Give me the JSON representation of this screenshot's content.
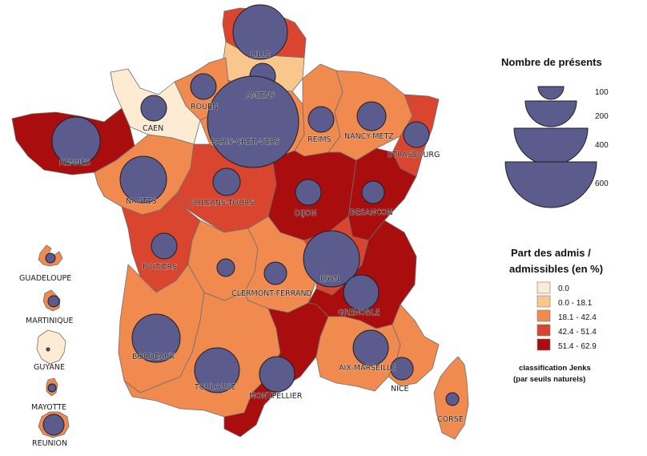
{
  "colors": {
    "c0": "#fdebd3",
    "c1": "#f9c78c",
    "c2": "#f08a4e",
    "c3": "#d9452f",
    "c4": "#aa0d0d",
    "circle": "#5b5b8e"
  },
  "legend": {
    "size_title": "Nombre de présents",
    "size_values": [
      "100",
      "200",
      "400",
      "600"
    ],
    "color_title_1": "Part des admis /",
    "color_title_2": "admissibles (en %)",
    "classes": [
      "0.0",
      "0.0 - 18.1",
      "18.1 - 42.4",
      "42.4 - 51.4",
      "51.4 - 62.9"
    ],
    "note_1": "classification Jenks",
    "note_2": "(par seuils naturels)"
  },
  "regions": [
    {
      "name": "LILLE",
      "class": 3
    },
    {
      "name": "AMIENS",
      "class": 1
    },
    {
      "name": "ROUEN",
      "class": 2
    },
    {
      "name": "CAEN",
      "class": 0
    },
    {
      "name": "PARIS-CRET.-VERS",
      "class": 2
    },
    {
      "name": "REIMS",
      "class": 2
    },
    {
      "name": "NANCY-METZ",
      "class": 2
    },
    {
      "name": "STRASBOURG",
      "class": 3
    },
    {
      "name": "RENNES",
      "class": 4
    },
    {
      "name": "NANTES",
      "class": 2
    },
    {
      "name": "ORLEANS-TOURS",
      "class": 3
    },
    {
      "name": "DIJON",
      "class": 4
    },
    {
      "name": "BESANCON",
      "class": 4
    },
    {
      "name": "POITIERS",
      "class": 3
    },
    {
      "name": "LIMOGES",
      "class": 2
    },
    {
      "name": "CLERMONT-FERRAND",
      "class": 2
    },
    {
      "name": "LYON",
      "class": 3
    },
    {
      "name": "GRENOBLE",
      "class": 4
    },
    {
      "name": "BORDEAUX",
      "class": 2
    },
    {
      "name": "TOULOUSE",
      "class": 2
    },
    {
      "name": "MONTPELLIER",
      "class": 4
    },
    {
      "name": "AIX-MARSEILLE",
      "class": 2
    },
    {
      "name": "NICE",
      "class": 2
    },
    {
      "name": "CORSE",
      "class": 2
    },
    {
      "name": "GUADELOUPE",
      "class": 2
    },
    {
      "name": "MARTINIQUE",
      "class": 2
    },
    {
      "name": "GUYANE",
      "class": 0
    },
    {
      "name": "MAYOTTE",
      "class": 2
    },
    {
      "name": "REUNION",
      "class": 2
    }
  ]
}
